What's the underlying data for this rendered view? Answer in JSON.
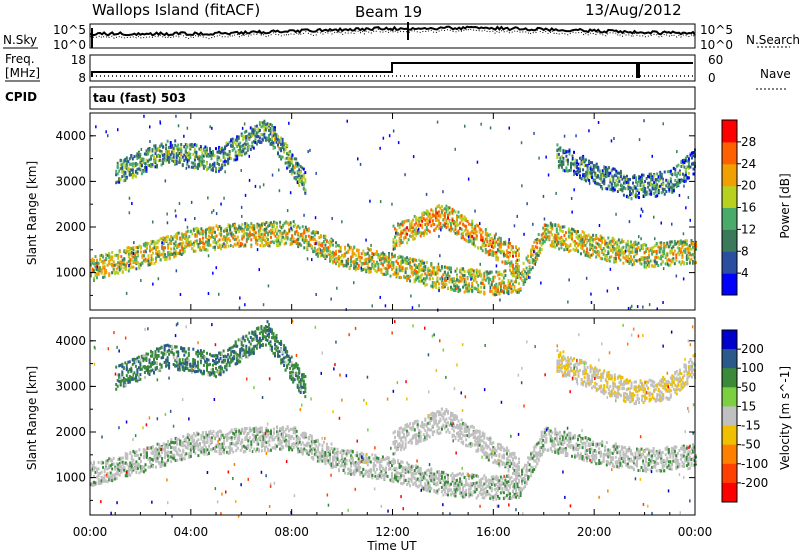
{
  "header": {
    "station": "Wallops Island (fitACF)",
    "beam": "Beam 19",
    "date": "13/Aug/2012"
  },
  "left_labels": {
    "nsky": "N.Sky",
    "freq_line1": "Freq.",
    "freq_line2": "[MHz]",
    "cpid": "CPID"
  },
  "right_labels": {
    "nsearch": "N.Search",
    "nave": "Nave"
  },
  "noise_panel": {
    "ticks_left": [
      "10^5",
      "10^0"
    ],
    "ticks_right": [
      "10^5",
      "10^0"
    ]
  },
  "freq_panel": {
    "ticks_left": [
      "18",
      "8"
    ],
    "ticks_right": [
      "60",
      "0"
    ]
  },
  "cpid_text": "tau (fast) 503",
  "xaxis": {
    "label": "Time UT",
    "ticks": [
      "00:00",
      "04:00",
      "08:00",
      "12:00",
      "16:00",
      "20:00",
      "00:00"
    ]
  },
  "colors": {
    "power": [
      "#0000ff",
      "#2a4fa0",
      "#3a7a5a",
      "#4aaa6a",
      "#b8d020",
      "#f0a000",
      "#ff6000",
      "#ff0000"
    ],
    "velocity": [
      "#0000cc",
      "#2a5a8a",
      "#3a8a3a",
      "#7ad040",
      "#c0c0c0",
      "#f0c000",
      "#ff8000",
      "#ff4000",
      "#ff0000"
    ]
  },
  "chart_data": [
    {
      "type": "heatmap",
      "title": "",
      "xlabel": "",
      "ylabel": "Slant Range [km]",
      "yticks": [
        "1000",
        "2000",
        "3000",
        "4000"
      ],
      "xlim": [
        "00:00",
        "00:00"
      ],
      "ylim": [
        180,
        4500
      ],
      "colorbar": {
        "label": "Power [dB]",
        "ticks": [
          "4",
          "8",
          "12",
          "16",
          "20",
          "24",
          "28"
        ]
      },
      "echo_bands": [
        {
          "t": [
            0,
            2,
            4,
            6,
            8,
            10,
            12,
            14,
            16,
            17,
            18,
            20,
            22,
            24
          ],
          "range_km": [
            1100,
            1400,
            1750,
            1850,
            1900,
            1400,
            1200,
            900,
            800,
            850,
            1900,
            1600,
            1400,
            1500
          ],
          "power_db": 22
        },
        {
          "t": [
            1,
            3,
            5,
            7,
            8.5
          ],
          "range_km": [
            3200,
            3700,
            3500,
            4200,
            3000
          ],
          "power_db": 16
        },
        {
          "t": [
            12,
            14,
            16,
            17
          ],
          "range_km": [
            1800,
            2300,
            1600,
            1300
          ],
          "power_db": 25
        },
        {
          "t": [
            18.5,
            20,
            21.5,
            23,
            24
          ],
          "range_km": [
            3600,
            3200,
            2900,
            3000,
            3500
          ],
          "power_db": 14
        }
      ]
    },
    {
      "type": "heatmap",
      "title": "",
      "xlabel": "Time UT",
      "ylabel": "Slant Range [km]",
      "yticks": [
        "1000",
        "2000",
        "3000",
        "4000"
      ],
      "xlim": [
        "00:00",
        "00:00"
      ],
      "ylim": [
        180,
        4500
      ],
      "colorbar": {
        "label": "Velocity [m s^-1]",
        "ticks": [
          "200",
          "100",
          "50",
          "15",
          "-15",
          "-50",
          "-100",
          "-200"
        ]
      },
      "echo_bands": [
        {
          "t": [
            0,
            2,
            4,
            6,
            8,
            10,
            12,
            14,
            16,
            17,
            18,
            20,
            22,
            24
          ],
          "range_km": [
            1100,
            1400,
            1750,
            1850,
            1900,
            1400,
            1200,
            900,
            800,
            850,
            1900,
            1600,
            1400,
            1500
          ],
          "velocity_ms": 0
        },
        {
          "t": [
            1,
            3,
            5,
            7,
            8.5
          ],
          "range_km": [
            3200,
            3700,
            3500,
            4200,
            3000
          ],
          "velocity_ms": 40
        },
        {
          "t": [
            12,
            14,
            16,
            17
          ],
          "range_km": [
            1800,
            2300,
            1600,
            1300
          ],
          "velocity_ms": -10
        },
        {
          "t": [
            18.5,
            20,
            21.5,
            23,
            24
          ],
          "range_km": [
            3600,
            3200,
            2900,
            3000,
            3500
          ],
          "velocity_ms": -40
        }
      ]
    }
  ]
}
